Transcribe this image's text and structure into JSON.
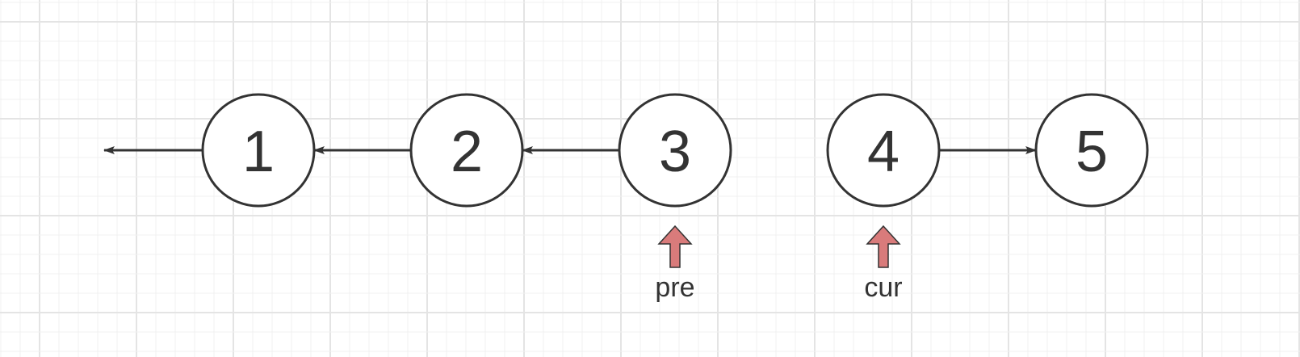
{
  "colors": {
    "background": "#ffffff",
    "grid_minor": "#f0f0f0",
    "grid_major": "#e4e4e4",
    "node_stroke": "#333333",
    "node_fill": "#ffffff",
    "edge": "#333333",
    "pointer_fill": "#d97b7b",
    "pointer_stroke": "#333333"
  },
  "nodes": [
    {
      "id": "n1",
      "label": "1"
    },
    {
      "id": "n2",
      "label": "2"
    },
    {
      "id": "n3",
      "label": "3"
    },
    {
      "id": "n4",
      "label": "4"
    },
    {
      "id": "n5",
      "label": "5"
    }
  ],
  "edges": [
    {
      "from": "n1",
      "to": "null",
      "direction": "left"
    },
    {
      "from": "n2",
      "to": "n1",
      "direction": "left"
    },
    {
      "from": "n3",
      "to": "n2",
      "direction": "left"
    },
    {
      "from": "n4",
      "to": "n5",
      "direction": "right"
    }
  ],
  "pointers": [
    {
      "name": "pre",
      "label": "pre",
      "target": "n3",
      "icon": "up-arrow-icon"
    },
    {
      "name": "cur",
      "label": "cur",
      "target": "n4",
      "icon": "up-arrow-icon"
    }
  ]
}
